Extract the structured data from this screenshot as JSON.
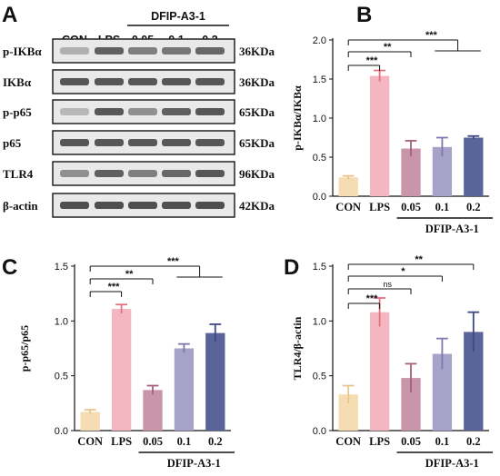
{
  "chart_data": [
    {
      "panel": "A",
      "type": "western_blot",
      "lanes": [
        "CON",
        "LPS",
        "0.05",
        "0.1",
        "0.2"
      ],
      "group_label": "DFIP-A3-1",
      "rows": [
        {
          "protein": "p-IKBα",
          "size": "36KDa",
          "intensity": [
            0.25,
            0.75,
            0.55,
            0.6,
            0.7
          ]
        },
        {
          "protein": "IKBα",
          "size": "36KDa",
          "intensity": [
            0.8,
            0.8,
            0.8,
            0.8,
            0.8
          ]
        },
        {
          "protein": "p-p65",
          "size": "65KDa",
          "intensity": [
            0.2,
            0.8,
            0.45,
            0.75,
            0.8
          ]
        },
        {
          "protein": "p65",
          "size": "65KDa",
          "intensity": [
            0.8,
            0.8,
            0.8,
            0.8,
            0.8
          ]
        },
        {
          "protein": "TLR4",
          "size": "96KDa",
          "intensity": [
            0.45,
            0.75,
            0.55,
            0.7,
            0.8
          ]
        },
        {
          "protein": "β-actin",
          "size": "42KDa",
          "intensity": [
            0.85,
            0.85,
            0.85,
            0.85,
            0.85
          ]
        }
      ]
    },
    {
      "panel": "B",
      "type": "bar",
      "categories": [
        "CON",
        "LPS",
        "0.05",
        "0.1",
        "0.2"
      ],
      "values": [
        0.24,
        1.54,
        0.61,
        0.63,
        0.75
      ],
      "errors": [
        0.02,
        0.07,
        0.1,
        0.12,
        0.02
      ],
      "ylabel": "p-IKBα/IKBα",
      "ylim": [
        0,
        2.0
      ],
      "yticks": [
        "0.0",
        "0.5",
        "1.0",
        "1.5",
        "2.0"
      ],
      "group_label": "DFIP-A3-1",
      "significance": [
        {
          "from": 0,
          "to": 1,
          "label": "***"
        },
        {
          "from": 0,
          "to": 2,
          "label": "**"
        },
        {
          "from": 0,
          "to": [
            3,
            4
          ],
          "label": "***"
        }
      ]
    },
    {
      "panel": "C",
      "type": "bar",
      "categories": [
        "CON",
        "LPS",
        "0.05",
        "0.1",
        "0.2"
      ],
      "values": [
        0.17,
        1.11,
        0.37,
        0.75,
        0.89
      ],
      "errors": [
        0.02,
        0.04,
        0.04,
        0.04,
        0.08
      ],
      "ylabel": "p-p65/p65",
      "ylim": [
        0,
        1.5
      ],
      "yticks": [
        "0.0",
        "0.5",
        "1.0",
        "1.5"
      ],
      "group_label": "DFIP-A3-1",
      "significance": [
        {
          "from": 0,
          "to": 1,
          "label": "***"
        },
        {
          "from": 0,
          "to": 2,
          "label": "**"
        },
        {
          "from": 0,
          "to": [
            3,
            4
          ],
          "label": "***"
        }
      ]
    },
    {
      "panel": "D",
      "type": "bar",
      "categories": [
        "CON",
        "LPS",
        "0.05",
        "0.1",
        "0.2"
      ],
      "values": [
        0.33,
        1.08,
        0.48,
        0.7,
        0.9
      ],
      "errors": [
        0.08,
        0.13,
        0.13,
        0.14,
        0.18
      ],
      "ylabel": "TLR4/β-actin",
      "ylim": [
        0,
        1.5
      ],
      "yticks": [
        "0.0",
        "0.5",
        "1.0",
        "1.5"
      ],
      "group_label": "DFIP-A3-1",
      "significance": [
        {
          "from": 0,
          "to": 1,
          "label": "***"
        },
        {
          "from": 0,
          "to": 2,
          "label": "ns"
        },
        {
          "from": 0,
          "to": 3,
          "label": "*"
        },
        {
          "from": 0,
          "to": 4,
          "label": "**"
        }
      ]
    }
  ],
  "colors": {
    "bars": [
      "#f6dcb2",
      "#f4b6c0",
      "#c895a9",
      "#a6a2c8",
      "#5b6499"
    ],
    "errors": [
      "#e8c48e",
      "#e2727f",
      "#a45f7c",
      "#7e78ae",
      "#3f4785"
    ]
  }
}
